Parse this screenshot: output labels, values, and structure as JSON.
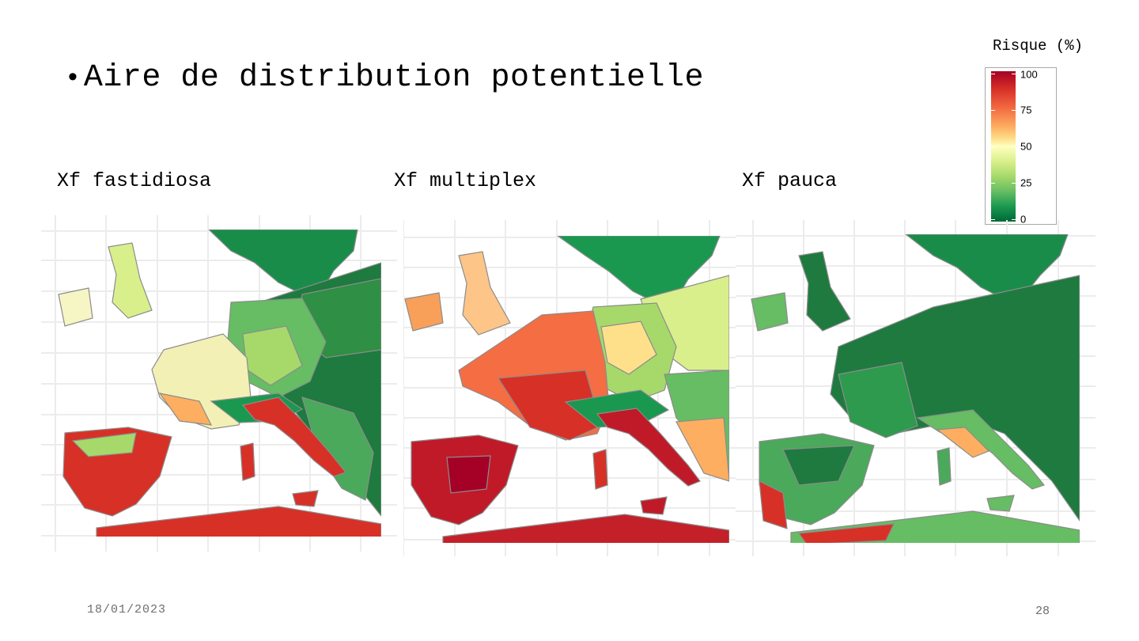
{
  "slide": {
    "bullet_title": "Aire de distribution potentielle",
    "date": "18/01/2023",
    "page_number": "28"
  },
  "maps": [
    {
      "label": "Xf fastidiosa"
    },
    {
      "label": "Xf multiplex"
    },
    {
      "label": "Xf pauca"
    }
  ],
  "legend": {
    "title": "Risque (%)",
    "ticks": [
      "100",
      "75",
      "50",
      "25",
      "0"
    ],
    "colors": [
      "#a50026",
      "#d73027",
      "#f46d43",
      "#fdae61",
      "#fee08b",
      "#ffffbf",
      "#d9ef8b",
      "#a6d96a",
      "#66bd63",
      "#1a9850",
      "#006837"
    ]
  }
}
